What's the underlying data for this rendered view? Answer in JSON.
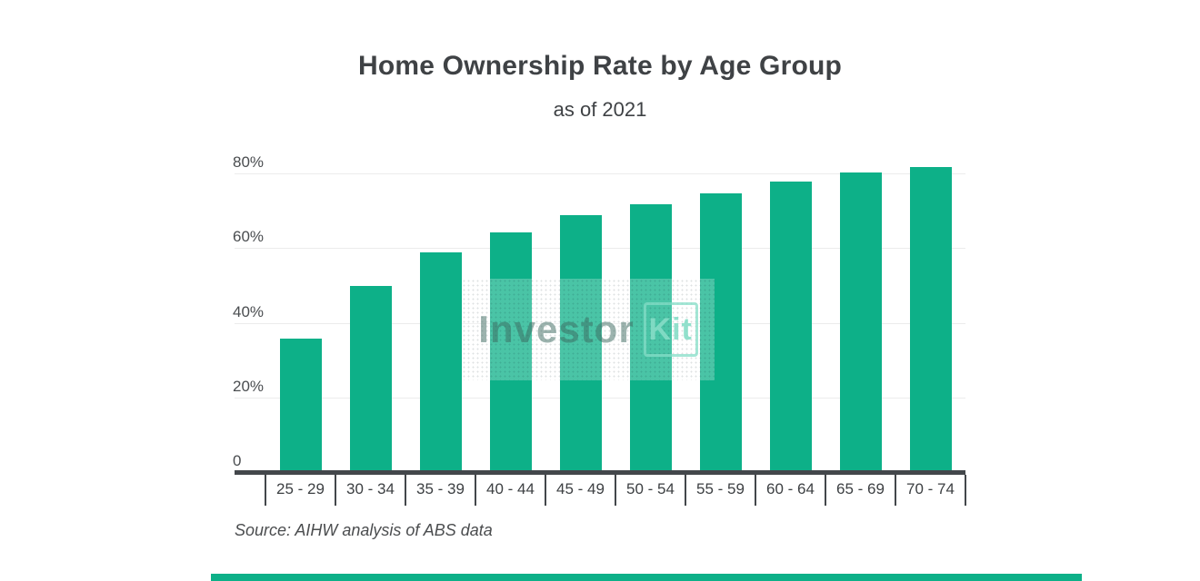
{
  "header": {
    "title": "Home Ownership Rate by Age Group",
    "subtitle": "as of 2021"
  },
  "chart_data": {
    "type": "bar",
    "title": "Home Ownership Rate by Age Group",
    "subtitle": "as of 2021",
    "categories": [
      "25 - 29",
      "30 - 34",
      "35 - 39",
      "40 - 44",
      "45 - 49",
      "50 - 54",
      "55 - 59",
      "60 - 64",
      "65 - 69",
      "70 - 74"
    ],
    "values": [
      36,
      50,
      59,
      64.5,
      69,
      72,
      75,
      78,
      80.5,
      82
    ],
    "unit": "%",
    "xlabel": "",
    "ylabel": "",
    "y_ticks": [
      {
        "value": 0,
        "label": "0"
      },
      {
        "value": 20,
        "label": "20%"
      },
      {
        "value": 40,
        "label": "40%"
      },
      {
        "value": 60,
        "label": "60%"
      },
      {
        "value": 80,
        "label": "80%"
      }
    ],
    "ylim": [
      0,
      89
    ],
    "grid": true,
    "legend": "none",
    "bar_color": "#0db088",
    "gridline_color": "#ececec",
    "axis_color": "#43474b"
  },
  "watermark": {
    "text": "Investor",
    "boxed_text": "Kit",
    "accent_color": "#86ddc7"
  },
  "source": {
    "text": "Source: AIHW analysis of ABS data"
  },
  "footer": {
    "accent_bar_color": "#0db088"
  }
}
